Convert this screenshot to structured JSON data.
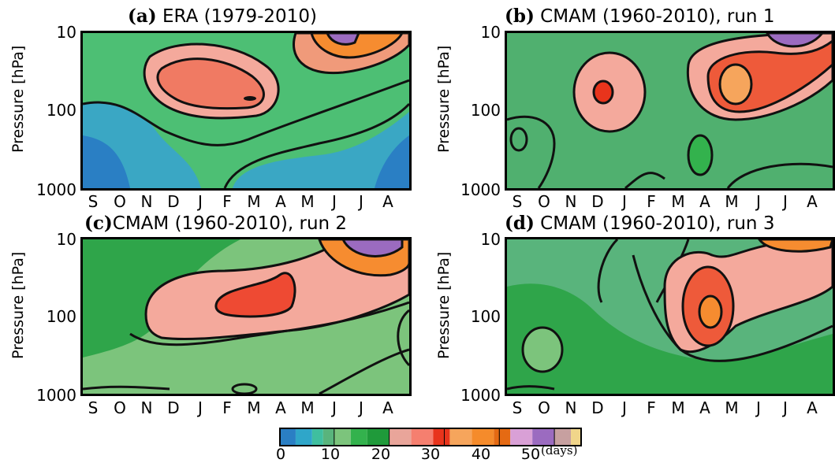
{
  "chart_data": [
    {
      "type": "heatmap",
      "panel_label": "(a)",
      "title": "ERA (1979-2010)",
      "xlabel": "",
      "ylabel": "Pressure [hPa]",
      "x_ticks": [
        "S",
        "O",
        "N",
        "D",
        "J",
        "F",
        "M",
        "A",
        "M",
        "J",
        "J",
        "A"
      ],
      "y_ticks": [
        "10",
        "100",
        "1000"
      ],
      "y_scale": "log",
      "ylim": [
        1000,
        10
      ],
      "contour_levels_days": [
        10,
        20,
        30,
        40,
        50
      ],
      "features": [
        {
          "month": "F-M",
          "pressure_hPa": 50,
          "value_days": 34
        },
        {
          "month": "J",
          "pressure_hPa": 12,
          "value_days": 52
        },
        {
          "month": "A",
          "pressure_hPa": 700,
          "value_days": 3
        }
      ]
    },
    {
      "type": "heatmap",
      "panel_label": "(b)",
      "title": "CMAM (1960-2010), run 1",
      "xlabel": "",
      "ylabel": "Pressure [hPa]",
      "x_ticks": [
        "S",
        "O",
        "N",
        "D",
        "J",
        "F",
        "M",
        "A",
        "M",
        "J",
        "J",
        "A"
      ],
      "y_ticks": [
        "10",
        "100",
        "1000"
      ],
      "y_scale": "log",
      "ylim": [
        1000,
        10
      ],
      "contour_levels_days": [
        10,
        20,
        30,
        40,
        50
      ],
      "features": [
        {
          "month": "J",
          "pressure_hPa": 45,
          "value_days": 30
        },
        {
          "month": "A",
          "pressure_hPa": 40,
          "value_days": 36
        },
        {
          "month": "J",
          "pressure_hPa": 12,
          "value_days": 50
        }
      ]
    },
    {
      "type": "heatmap",
      "panel_label": "(c)",
      "title": "CMAM (1960-2010), run 2",
      "xlabel": "",
      "ylabel": "Pressure [hPa]",
      "x_ticks": [
        "S",
        "O",
        "N",
        "D",
        "J",
        "F",
        "M",
        "A",
        "M",
        "J",
        "J",
        "A"
      ],
      "y_ticks": [
        "10",
        "100",
        "1000"
      ],
      "y_scale": "log",
      "ylim": [
        1000,
        10
      ],
      "contour_levels_days": [
        10,
        20,
        30,
        40,
        50
      ],
      "features": [
        {
          "month": "M-A",
          "pressure_hPa": 50,
          "value_days": 30
        },
        {
          "month": "J",
          "pressure_hPa": 12,
          "value_days": 55
        }
      ]
    },
    {
      "type": "heatmap",
      "panel_label": "(d)",
      "title": "CMAM (1960-2010), run 3",
      "xlabel": "",
      "ylabel": "Pressure [hPa]",
      "x_ticks": [
        "S",
        "O",
        "N",
        "D",
        "J",
        "F",
        "M",
        "A",
        "M",
        "J",
        "J",
        "A"
      ],
      "y_ticks": [
        "10",
        "100",
        "1000"
      ],
      "y_scale": "log",
      "ylim": [
        1000,
        10
      ],
      "contour_levels_days": [
        10,
        20,
        30,
        40,
        50
      ],
      "features": [
        {
          "month": "A",
          "pressure_hPa": 90,
          "value_days": 38
        },
        {
          "month": "J",
          "pressure_hPa": 12,
          "value_days": 45
        }
      ]
    }
  ],
  "colorbar": {
    "ticks": [
      "0",
      "10",
      "20",
      "30",
      "40",
      "50"
    ],
    "unit": "(days)",
    "min": 0,
    "max": 55,
    "stops": [
      {
        "v": 0,
        "c": "#2a7fc4"
      },
      {
        "v": 3,
        "c": "#2fa6c9"
      },
      {
        "v": 6,
        "c": "#3fbf9f"
      },
      {
        "v": 8,
        "c": "#59b47c"
      },
      {
        "v": 10,
        "c": "#7cc47c"
      },
      {
        "v": 13,
        "c": "#33b24d"
      },
      {
        "v": 16,
        "c": "#1f9a3a"
      },
      {
        "v": 20,
        "c": "#e9a59a"
      },
      {
        "v": 24,
        "c": "#f57f6f"
      },
      {
        "v": 28,
        "c": "#e8341c"
      },
      {
        "v": 31,
        "c": "#f6a55c"
      },
      {
        "v": 35,
        "c": "#f58b2b"
      },
      {
        "v": 39,
        "c": "#e56a13"
      },
      {
        "v": 42,
        "c": "#d9a0d6"
      },
      {
        "v": 46,
        "c": "#9b6bc0"
      },
      {
        "v": 50,
        "c": "#c7a0a0"
      },
      {
        "v": 53,
        "c": "#f0d58a"
      },
      {
        "v": 55,
        "c": "#e59a3a"
      }
    ]
  }
}
